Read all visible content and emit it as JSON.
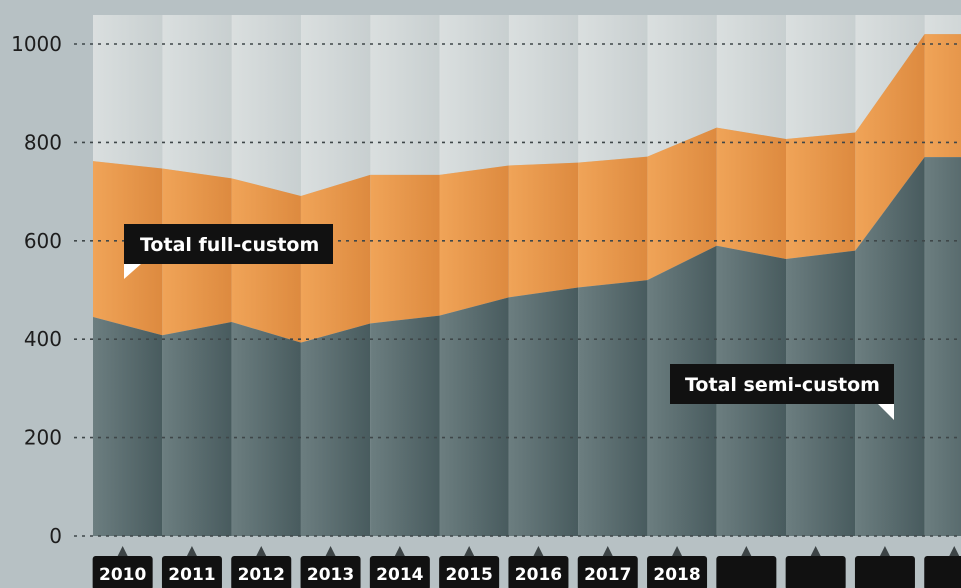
{
  "chart_data": {
    "type": "area",
    "stacked": true,
    "x": [
      "2010",
      "2011",
      "2012",
      "2013",
      "2014",
      "2015",
      "2016",
      "2017",
      "2018",
      "",
      "",
      "",
      ""
    ],
    "ylim": [
      0,
      1000
    ],
    "yticks": [
      0,
      200,
      400,
      600,
      800,
      1000
    ],
    "ytick_labels": [
      "0",
      "200",
      "400",
      "600",
      "800",
      "1000"
    ],
    "grid": true,
    "series": [
      {
        "name": "Total semi-custom",
        "color": "#56686b",
        "values": [
          445,
          408,
          435,
          393,
          432,
          448,
          485,
          505,
          520,
          590,
          563,
          580,
          770
        ]
      },
      {
        "name": "Total full-custom",
        "color": "#e8944a",
        "values": [
          317,
          339,
          292,
          298,
          302,
          286,
          268,
          254,
          251,
          240,
          244,
          240,
          250
        ]
      }
    ],
    "annotations": [
      {
        "text": "Total full-custom",
        "series": "Total full-custom"
      },
      {
        "text": "Total semi-custom",
        "series": "Total semi-custom"
      }
    ],
    "colors": {
      "page_background": "#b7c1c4",
      "plot_background": "#d3d8d8",
      "label_box": "#111111"
    }
  }
}
